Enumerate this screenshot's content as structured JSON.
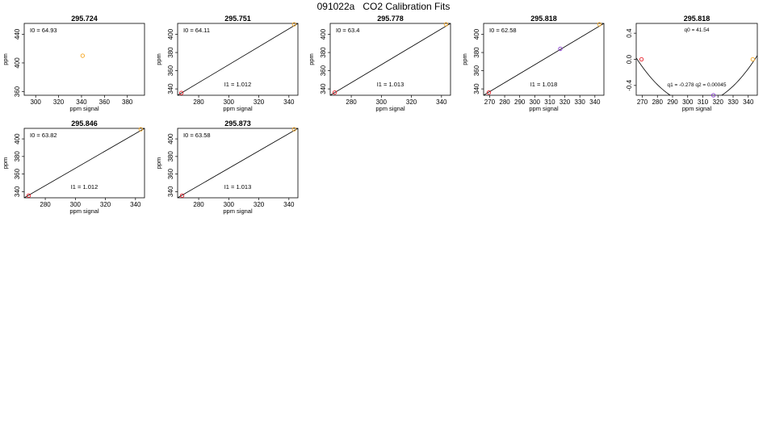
{
  "title": "091022a   CO2 Calibration Fits",
  "colors": {
    "red": "#e8202a",
    "orange": "#f5a623",
    "purple": "#8a3fd1",
    "axis": "#000000",
    "line": "#000000"
  },
  "chart_data": [
    {
      "type": "scatter",
      "title": "295.724",
      "xlabel": "ppm signal",
      "ylabel": "ppm",
      "xlim": [
        290,
        395
      ],
      "ylim": [
        355,
        455
      ],
      "xticks": [
        300,
        320,
        340,
        360,
        380
      ],
      "yticks": [
        360,
        400,
        440
      ],
      "points": [
        {
          "x": 341,
          "y": 410,
          "color": "orange"
        }
      ],
      "fit": null,
      "annotations": [
        {
          "text": "I0 =  64.93",
          "pos": "top-left"
        }
      ]
    },
    {
      "type": "scatter",
      "title": "295.751",
      "xlabel": "ppm signal",
      "ylabel": "ppm",
      "xlim": [
        266,
        346
      ],
      "ylim": [
        333,
        412
      ],
      "xticks": [
        280,
        300,
        320,
        340
      ],
      "yticks": [
        340,
        360,
        380,
        400
      ],
      "points": [
        {
          "x": 268.5,
          "y": 335.5,
          "color": "red"
        },
        {
          "x": 343.5,
          "y": 411,
          "color": "orange"
        }
      ],
      "fit": {
        "kind": "linear",
        "x": [
          266,
          346
        ],
        "y": [
          333,
          412
        ]
      },
      "annotations": [
        {
          "text": "I0 =  64.11",
          "pos": "top-left"
        },
        {
          "text": "I1 =  1.012",
          "pos": "bottom-center"
        }
      ]
    },
    {
      "type": "scatter",
      "title": "295.778",
      "xlabel": "ppm signal",
      "ylabel": "ppm",
      "xlim": [
        266,
        346
      ],
      "ylim": [
        333,
        412
      ],
      "xticks": [
        280,
        300,
        320,
        340
      ],
      "yticks": [
        340,
        360,
        380,
        400
      ],
      "points": [
        {
          "x": 269,
          "y": 336,
          "color": "red"
        },
        {
          "x": 343,
          "y": 411,
          "color": "orange"
        }
      ],
      "fit": {
        "kind": "linear",
        "x": [
          266,
          346
        ],
        "y": [
          333,
          412
        ]
      },
      "annotations": [
        {
          "text": "I0 =  63.4",
          "pos": "top-left"
        },
        {
          "text": "I1 =  1.013",
          "pos": "bottom-center"
        }
      ]
    },
    {
      "type": "scatter",
      "title": "295.818",
      "xlabel": "ppm signal",
      "ylabel": "ppm",
      "xlim": [
        266,
        346
      ],
      "ylim": [
        333,
        412
      ],
      "xticks": [
        270,
        280,
        290,
        300,
        310,
        320,
        330,
        340
      ],
      "yticks": [
        340,
        360,
        380,
        400
      ],
      "points": [
        {
          "x": 269.5,
          "y": 336,
          "color": "red"
        },
        {
          "x": 317,
          "y": 384,
          "color": "purple"
        },
        {
          "x": 343,
          "y": 411,
          "color": "orange"
        }
      ],
      "fit": {
        "kind": "linear",
        "x": [
          266,
          346
        ],
        "y": [
          333,
          412
        ]
      },
      "annotations": [
        {
          "text": "I0 =  62.58",
          "pos": "top-left"
        },
        {
          "text": "I1 =  1.018",
          "pos": "bottom-center"
        }
      ]
    },
    {
      "type": "scatter",
      "title": "295.818",
      "xlabel": "ppm signal",
      "ylabel": "",
      "xlim": [
        266,
        346
      ],
      "ylim": [
        -0.55,
        0.55
      ],
      "xticks": [
        270,
        280,
        290,
        300,
        310,
        320,
        330,
        340
      ],
      "yticks": [
        -0.4,
        0.0,
        0.4
      ],
      "ytick_labels": [
        "-0.4",
        "0.0",
        "0.4"
      ],
      "points": [
        {
          "x": 269.5,
          "y": 0.0,
          "color": "red"
        },
        {
          "x": 317,
          "y": -0.55,
          "color": "purple"
        },
        {
          "x": 343,
          "y": 0.0,
          "color": "orange"
        }
      ],
      "fit": {
        "kind": "quadratic",
        "x": [
          266,
          346
        ],
        "vertex_x": 305.5,
        "vertex_y": -0.68,
        "coef": 0.00045
      },
      "annotations": [
        {
          "text": "q0 =  41.54",
          "pos": "top-center"
        },
        {
          "text": "q1 = -0.278   q2 =  0.00045",
          "pos": "bottom-center"
        }
      ]
    },
    {
      "type": "scatter",
      "title": "295.846",
      "xlabel": "ppm signal",
      "ylabel": "ppm",
      "xlim": [
        266,
        346
      ],
      "ylim": [
        333,
        412
      ],
      "xticks": [
        280,
        300,
        320,
        340
      ],
      "yticks": [
        340,
        360,
        380,
        400
      ],
      "points": [
        {
          "x": 269,
          "y": 335.5,
          "color": "red"
        },
        {
          "x": 343.5,
          "y": 411,
          "color": "orange"
        }
      ],
      "fit": {
        "kind": "linear",
        "x": [
          266,
          346
        ],
        "y": [
          333,
          412
        ]
      },
      "annotations": [
        {
          "text": "I0 =  63.82",
          "pos": "top-left"
        },
        {
          "text": "I1 =  1.012",
          "pos": "bottom-center"
        }
      ]
    },
    {
      "type": "scatter",
      "title": "295.873",
      "xlabel": "ppm signal",
      "ylabel": "ppm",
      "xlim": [
        266,
        346
      ],
      "ylim": [
        333,
        412
      ],
      "xticks": [
        280,
        300,
        320,
        340
      ],
      "yticks": [
        340,
        360,
        380,
        400
      ],
      "points": [
        {
          "x": 269,
          "y": 335.5,
          "color": "red"
        },
        {
          "x": 343.5,
          "y": 411,
          "color": "orange"
        }
      ],
      "fit": {
        "kind": "linear",
        "x": [
          266,
          346
        ],
        "y": [
          333,
          412
        ]
      },
      "annotations": [
        {
          "text": "I0 =  63.58",
          "pos": "top-left"
        },
        {
          "text": "I1 =  1.013",
          "pos": "bottom-center"
        }
      ]
    }
  ]
}
